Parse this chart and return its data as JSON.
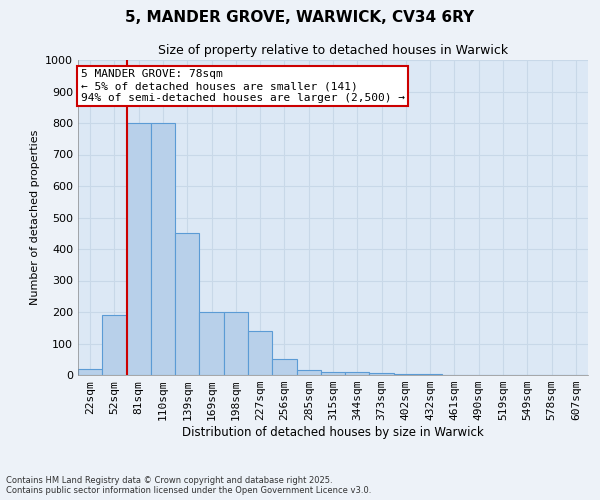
{
  "title_line1": "5, MANDER GROVE, WARWICK, CV34 6RY",
  "title_line2": "Size of property relative to detached houses in Warwick",
  "xlabel": "Distribution of detached houses by size in Warwick",
  "ylabel": "Number of detached properties",
  "bin_labels": [
    "22sqm",
    "52sqm",
    "81sqm",
    "110sqm",
    "139sqm",
    "169sqm",
    "198sqm",
    "227sqm",
    "256sqm",
    "285sqm",
    "315sqm",
    "344sqm",
    "373sqm",
    "402sqm",
    "432sqm",
    "461sqm",
    "490sqm",
    "519sqm",
    "549sqm",
    "578sqm",
    "607sqm"
  ],
  "bar_heights": [
    20,
    190,
    800,
    800,
    450,
    200,
    200,
    140,
    50,
    15,
    10,
    10,
    5,
    2,
    2,
    1,
    1,
    1,
    0,
    0,
    0
  ],
  "bar_color": "#b8d0ea",
  "bar_edge_color": "#5b9bd5",
  "vline_color": "#cc0000",
  "annotation_text": "5 MANDER GROVE: 78sqm\n← 5% of detached houses are smaller (141)\n94% of semi-detached houses are larger (2,500) →",
  "annotation_box_color": "#cc0000",
  "ylim": [
    0,
    1000
  ],
  "yticks": [
    0,
    100,
    200,
    300,
    400,
    500,
    600,
    700,
    800,
    900,
    1000
  ],
  "footer_line1": "Contains HM Land Registry data © Crown copyright and database right 2025.",
  "footer_line2": "Contains public sector information licensed under the Open Government Licence v3.0.",
  "bg_color": "#edf2f8",
  "plot_bg_color": "#dce8f5",
  "grid_color": "#c8d8e8"
}
